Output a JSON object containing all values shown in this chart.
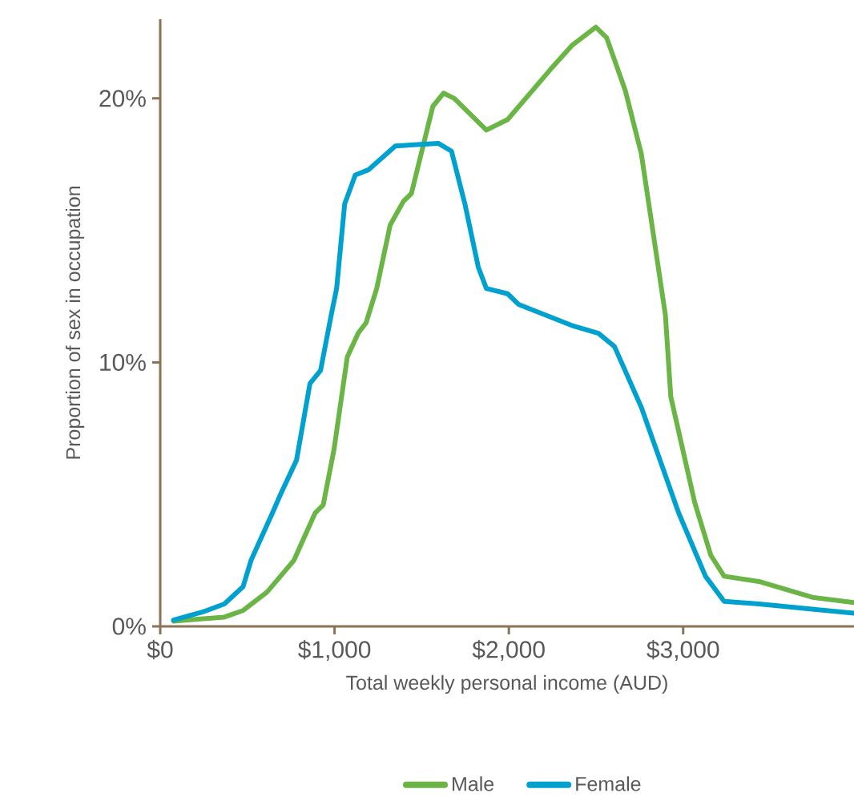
{
  "chart_data": {
    "type": "line",
    "xlabel": "Total weekly personal income (AUD)",
    "ylabel": "Proportion of sex in occupation",
    "xlim": [
      0,
      3980
    ],
    "ylim": [
      0,
      23
    ],
    "xticks": [
      {
        "value": 0,
        "label": "$0"
      },
      {
        "value": 1000,
        "label": "$1,000"
      },
      {
        "value": 2000,
        "label": "$2,000"
      },
      {
        "value": 3000,
        "label": "$3,000"
      }
    ],
    "yticks": [
      {
        "value": 0,
        "label": "0%"
      },
      {
        "value": 10,
        "label": "10%"
      },
      {
        "value": 20,
        "label": "20%"
      }
    ],
    "grid": false,
    "legend": "bottom",
    "series": [
      {
        "name": "Male",
        "color": "#6ab545",
        "x": [
          76,
          368,
          475,
          613,
          767,
          889,
          935,
          997,
          1073,
          1135,
          1181,
          1242,
          1319,
          1395,
          1441,
          1564,
          1625,
          1687,
          1871,
          1993,
          2239,
          2361,
          2499,
          2561,
          2668,
          2760,
          2898,
          2929,
          3066,
          3158,
          3235,
          3434,
          3741,
          3980
        ],
        "values": [
          0.2,
          0.35,
          0.6,
          1.3,
          2.5,
          4.3,
          4.6,
          6.7,
          10.2,
          11.1,
          11.5,
          12.8,
          15.2,
          16.1,
          16.4,
          19.7,
          20.2,
          20.0,
          18.8,
          19.2,
          21.1,
          22.0,
          22.7,
          22.3,
          20.3,
          17.9,
          11.8,
          8.7,
          4.7,
          2.7,
          1.9,
          1.7,
          1.1,
          0.9
        ]
      },
      {
        "name": "Female",
        "color": "#00a0cf",
        "x": [
          76,
          245,
          368,
          475,
          521,
          644,
          690,
          782,
          859,
          920,
          981,
          1012,
          1058,
          1119,
          1196,
          1349,
          1595,
          1671,
          1748,
          1825,
          1871,
          1993,
          2055,
          2361,
          2514,
          2606,
          2760,
          2974,
          3128,
          3235,
          3434,
          3741,
          3980
        ],
        "values": [
          0.24,
          0.55,
          0.85,
          1.5,
          2.5,
          4.3,
          5.0,
          6.3,
          9.2,
          9.7,
          11.8,
          12.8,
          16.0,
          17.1,
          17.3,
          18.2,
          18.3,
          18.0,
          16.0,
          13.6,
          12.8,
          12.6,
          12.2,
          11.4,
          11.1,
          10.6,
          8.3,
          4.3,
          1.9,
          0.95,
          0.85,
          0.65,
          0.5
        ]
      }
    ]
  }
}
